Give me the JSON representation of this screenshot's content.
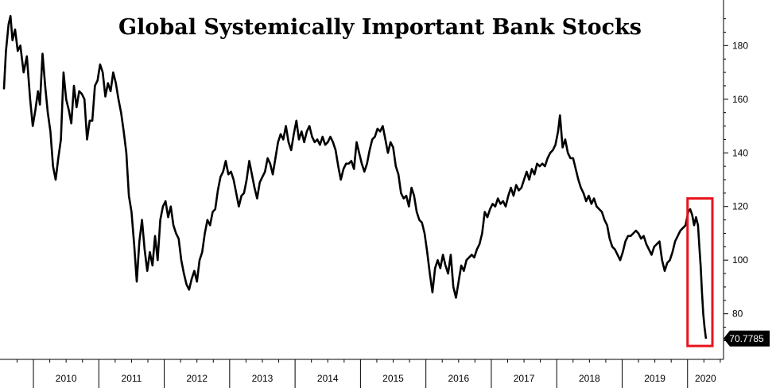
{
  "chart_data": {
    "type": "line",
    "title": "Global Systemically Important Bank Stocks",
    "xlabel": "",
    "ylabel": "",
    "ylim": [
      63,
      197
    ],
    "xlim": [
      2009.55,
      2020.55
    ],
    "y_ticks": [
      80,
      100,
      120,
      140,
      160,
      180
    ],
    "x_ticks": [
      "2010",
      "2011",
      "2012",
      "2013",
      "2014",
      "2015",
      "2016",
      "2017",
      "2018",
      "2019",
      "2020"
    ],
    "last_value": 70.7785,
    "last_value_label": "70.7785",
    "grid": false,
    "highlight_box": {
      "x_from": 2020.0,
      "x_to": 2020.38,
      "y_from": 68,
      "y_to": 123,
      "color": "#e8141c"
    },
    "series": [
      {
        "values": [
          [
            2009.55,
            164
          ],
          [
            2009.58,
            178
          ],
          [
            2009.62,
            188
          ],
          [
            2009.65,
            191
          ],
          [
            2009.68,
            182
          ],
          [
            2009.72,
            186
          ],
          [
            2009.76,
            178
          ],
          [
            2009.8,
            180
          ],
          [
            2009.85,
            170
          ],
          [
            2009.9,
            176
          ],
          [
            2009.95,
            160
          ],
          [
            2009.99,
            150
          ],
          [
            2010.03,
            156
          ],
          [
            2010.07,
            163
          ],
          [
            2010.1,
            158
          ],
          [
            2010.14,
            177
          ],
          [
            2010.18,
            165
          ],
          [
            2010.22,
            155
          ],
          [
            2010.26,
            148
          ],
          [
            2010.3,
            135
          ],
          [
            2010.34,
            130
          ],
          [
            2010.38,
            138
          ],
          [
            2010.42,
            145
          ],
          [
            2010.46,
            170
          ],
          [
            2010.5,
            160
          ],
          [
            2010.54,
            156
          ],
          [
            2010.58,
            151
          ],
          [
            2010.62,
            165
          ],
          [
            2010.66,
            157
          ],
          [
            2010.7,
            163
          ],
          [
            2010.74,
            162
          ],
          [
            2010.78,
            160
          ],
          [
            2010.82,
            145
          ],
          [
            2010.86,
            152
          ],
          [
            2010.9,
            152
          ],
          [
            2010.94,
            165
          ],
          [
            2010.98,
            167
          ],
          [
            2011.02,
            173
          ],
          [
            2011.06,
            170
          ],
          [
            2011.1,
            161
          ],
          [
            2011.14,
            166
          ],
          [
            2011.18,
            163
          ],
          [
            2011.22,
            170
          ],
          [
            2011.26,
            166
          ],
          [
            2011.3,
            160
          ],
          [
            2011.34,
            155
          ],
          [
            2011.38,
            148
          ],
          [
            2011.42,
            140
          ],
          [
            2011.46,
            124
          ],
          [
            2011.5,
            118
          ],
          [
            2011.54,
            106
          ],
          [
            2011.58,
            92
          ],
          [
            2011.62,
            107
          ],
          [
            2011.66,
            115
          ],
          [
            2011.7,
            104
          ],
          [
            2011.74,
            96
          ],
          [
            2011.78,
            103
          ],
          [
            2011.82,
            98
          ],
          [
            2011.86,
            109
          ],
          [
            2011.9,
            100
          ],
          [
            2011.94,
            115
          ],
          [
            2011.98,
            120
          ],
          [
            2012.02,
            122
          ],
          [
            2012.06,
            116
          ],
          [
            2012.1,
            120
          ],
          [
            2012.14,
            113
          ],
          [
            2012.18,
            110
          ],
          [
            2012.22,
            108
          ],
          [
            2012.26,
            100
          ],
          [
            2012.3,
            95
          ],
          [
            2012.34,
            91
          ],
          [
            2012.38,
            89
          ],
          [
            2012.42,
            93
          ],
          [
            2012.46,
            96
          ],
          [
            2012.5,
            92
          ],
          [
            2012.54,
            100
          ],
          [
            2012.58,
            103
          ],
          [
            2012.62,
            110
          ],
          [
            2012.66,
            115
          ],
          [
            2012.7,
            113
          ],
          [
            2012.74,
            118
          ],
          [
            2012.78,
            119
          ],
          [
            2012.82,
            126
          ],
          [
            2012.86,
            131
          ],
          [
            2012.9,
            133
          ],
          [
            2012.94,
            137
          ],
          [
            2012.98,
            132
          ],
          [
            2013.02,
            133
          ],
          [
            2013.06,
            130
          ],
          [
            2013.1,
            125
          ],
          [
            2013.14,
            120
          ],
          [
            2013.18,
            124
          ],
          [
            2013.22,
            125
          ],
          [
            2013.26,
            130
          ],
          [
            2013.3,
            137
          ],
          [
            2013.34,
            132
          ],
          [
            2013.38,
            127
          ],
          [
            2013.42,
            123
          ],
          [
            2013.46,
            129
          ],
          [
            2013.5,
            131
          ],
          [
            2013.54,
            133
          ],
          [
            2013.58,
            138
          ],
          [
            2013.62,
            136
          ],
          [
            2013.66,
            132
          ],
          [
            2013.7,
            138
          ],
          [
            2013.74,
            144
          ],
          [
            2013.78,
            147
          ],
          [
            2013.82,
            145
          ],
          [
            2013.86,
            150
          ],
          [
            2013.9,
            144
          ],
          [
            2013.94,
            141
          ],
          [
            2013.98,
            147
          ],
          [
            2014.02,
            152
          ],
          [
            2014.06,
            145
          ],
          [
            2014.1,
            148
          ],
          [
            2014.14,
            144
          ],
          [
            2014.18,
            148
          ],
          [
            2014.22,
            150
          ],
          [
            2014.26,
            146
          ],
          [
            2014.3,
            144
          ],
          [
            2014.34,
            145
          ],
          [
            2014.38,
            143
          ],
          [
            2014.42,
            146
          ],
          [
            2014.46,
            143
          ],
          [
            2014.5,
            144
          ],
          [
            2014.54,
            146
          ],
          [
            2014.58,
            144
          ],
          [
            2014.62,
            141
          ],
          [
            2014.66,
            135
          ],
          [
            2014.7,
            130
          ],
          [
            2014.74,
            134
          ],
          [
            2014.78,
            136
          ],
          [
            2014.82,
            136
          ],
          [
            2014.86,
            137
          ],
          [
            2014.9,
            134
          ],
          [
            2014.94,
            144
          ],
          [
            2014.98,
            140
          ],
          [
            2015.02,
            136
          ],
          [
            2015.06,
            133
          ],
          [
            2015.1,
            136
          ],
          [
            2015.14,
            141
          ],
          [
            2015.18,
            145
          ],
          [
            2015.22,
            146
          ],
          [
            2015.26,
            149
          ],
          [
            2015.3,
            148
          ],
          [
            2015.34,
            150
          ],
          [
            2015.38,
            145
          ],
          [
            2015.42,
            140
          ],
          [
            2015.46,
            144
          ],
          [
            2015.5,
            142
          ],
          [
            2015.54,
            135
          ],
          [
            2015.58,
            132
          ],
          [
            2015.62,
            125
          ],
          [
            2015.66,
            123
          ],
          [
            2015.7,
            124
          ],
          [
            2015.74,
            120
          ],
          [
            2015.78,
            127
          ],
          [
            2015.82,
            124
          ],
          [
            2015.86,
            118
          ],
          [
            2015.9,
            115
          ],
          [
            2015.94,
            114
          ],
          [
            2015.98,
            110
          ],
          [
            2016.02,
            103
          ],
          [
            2016.06,
            95
          ],
          [
            2016.1,
            88
          ],
          [
            2016.14,
            97
          ],
          [
            2016.18,
            100
          ],
          [
            2016.22,
            97
          ],
          [
            2016.26,
            102
          ],
          [
            2016.3,
            98
          ],
          [
            2016.34,
            95
          ],
          [
            2016.38,
            102
          ],
          [
            2016.42,
            90
          ],
          [
            2016.46,
            86
          ],
          [
            2016.5,
            92
          ],
          [
            2016.54,
            98
          ],
          [
            2016.58,
            96
          ],
          [
            2016.62,
            100
          ],
          [
            2016.66,
            101
          ],
          [
            2016.7,
            102
          ],
          [
            2016.74,
            101
          ],
          [
            2016.78,
            104
          ],
          [
            2016.82,
            106
          ],
          [
            2016.86,
            110
          ],
          [
            2016.9,
            118
          ],
          [
            2016.94,
            116
          ],
          [
            2016.98,
            119
          ],
          [
            2017.02,
            121
          ],
          [
            2017.06,
            120
          ],
          [
            2017.1,
            123
          ],
          [
            2017.14,
            121
          ],
          [
            2017.18,
            122
          ],
          [
            2017.22,
            120
          ],
          [
            2017.26,
            124
          ],
          [
            2017.3,
            127
          ],
          [
            2017.34,
            124
          ],
          [
            2017.38,
            128
          ],
          [
            2017.42,
            126
          ],
          [
            2017.46,
            127
          ],
          [
            2017.5,
            130
          ],
          [
            2017.54,
            133
          ],
          [
            2017.58,
            130
          ],
          [
            2017.62,
            134
          ],
          [
            2017.66,
            132
          ],
          [
            2017.7,
            136
          ],
          [
            2017.74,
            135
          ],
          [
            2017.78,
            136
          ],
          [
            2017.82,
            135
          ],
          [
            2017.86,
            138
          ],
          [
            2017.9,
            140
          ],
          [
            2017.94,
            141
          ],
          [
            2017.98,
            143
          ],
          [
            2018.02,
            148
          ],
          [
            2018.05,
            154
          ],
          [
            2018.09,
            142
          ],
          [
            2018.13,
            145
          ],
          [
            2018.17,
            140
          ],
          [
            2018.21,
            138
          ],
          [
            2018.25,
            138
          ],
          [
            2018.29,
            134
          ],
          [
            2018.33,
            130
          ],
          [
            2018.37,
            127
          ],
          [
            2018.41,
            125
          ],
          [
            2018.45,
            122
          ],
          [
            2018.49,
            124
          ],
          [
            2018.53,
            121
          ],
          [
            2018.57,
            123
          ],
          [
            2018.61,
            120
          ],
          [
            2018.65,
            119
          ],
          [
            2018.69,
            118
          ],
          [
            2018.73,
            115
          ],
          [
            2018.77,
            113
          ],
          [
            2018.81,
            108
          ],
          [
            2018.85,
            105
          ],
          [
            2018.89,
            104
          ],
          [
            2018.93,
            102
          ],
          [
            2018.97,
            100
          ],
          [
            2019.01,
            103
          ],
          [
            2019.05,
            107
          ],
          [
            2019.09,
            109
          ],
          [
            2019.13,
            109
          ],
          [
            2019.17,
            110
          ],
          [
            2019.21,
            111
          ],
          [
            2019.25,
            110
          ],
          [
            2019.29,
            108
          ],
          [
            2019.33,
            109
          ],
          [
            2019.37,
            106
          ],
          [
            2019.41,
            104
          ],
          [
            2019.45,
            102
          ],
          [
            2019.49,
            105
          ],
          [
            2019.53,
            106
          ],
          [
            2019.57,
            107
          ],
          [
            2019.61,
            100
          ],
          [
            2019.65,
            96
          ],
          [
            2019.69,
            99
          ],
          [
            2019.73,
            100
          ],
          [
            2019.77,
            103
          ],
          [
            2019.81,
            107
          ],
          [
            2019.85,
            109
          ],
          [
            2019.89,
            111
          ],
          [
            2019.93,
            112
          ],
          [
            2019.97,
            113
          ],
          [
            2020.01,
            118
          ],
          [
            2020.04,
            119
          ],
          [
            2020.07,
            117
          ],
          [
            2020.1,
            113
          ],
          [
            2020.13,
            116
          ],
          [
            2020.16,
            113
          ],
          [
            2020.18,
            105
          ],
          [
            2020.2,
            98
          ],
          [
            2020.22,
            88
          ],
          [
            2020.24,
            80
          ],
          [
            2020.26,
            75
          ],
          [
            2020.28,
            71
          ]
        ],
        "color": "#000000"
      }
    ]
  }
}
